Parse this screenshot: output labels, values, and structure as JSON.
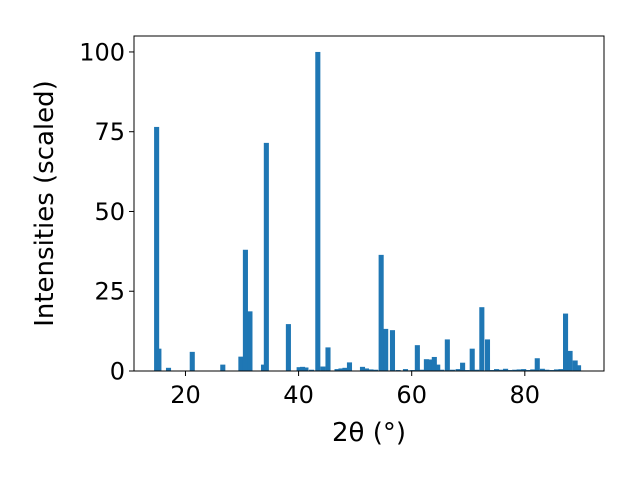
{
  "chart_data": {
    "type": "bar",
    "xlabel": "2θ (°)",
    "ylabel": "Intensities (scaled)",
    "xlim": [
      10.9,
      94.0
    ],
    "ylim": [
      0,
      105
    ],
    "xticks": [
      20,
      40,
      60,
      80
    ],
    "yticks": [
      0,
      25,
      50,
      75,
      100
    ],
    "grid": false,
    "bar_color": "#1f77b4",
    "bar_width": 0.9,
    "x": [
      14.9,
      15.3,
      17.0,
      21.2,
      26.6,
      29.8,
      30.6,
      31.4,
      33.8,
      34.3,
      38.2,
      40.1,
      40.7,
      41.3,
      42.3,
      43.4,
      44.3,
      45.2,
      46.8,
      47.5,
      48.2,
      49.0,
      51.3,
      52.0,
      52.8,
      53.6,
      54.6,
      55.4,
      56.6,
      57.6,
      58.9,
      59.6,
      60.2,
      61.0,
      61.8,
      62.6,
      63.2,
      64.0,
      64.6,
      65.3,
      66.3,
      67.2,
      68.2,
      69.0,
      69.8,
      70.7,
      71.5,
      72.4,
      73.4,
      74.2,
      75.0,
      75.8,
      76.6,
      77.3,
      78.2,
      79.0,
      79.8,
      80.6,
      81.4,
      82.2,
      83.1,
      83.9,
      84.8,
      85.6,
      86.4,
      87.2,
      88.0,
      88.9,
      89.5
    ],
    "values": [
      76.5,
      7.0,
      1.0,
      6.0,
      2.0,
      4.5,
      38.0,
      18.7,
      2.0,
      71.5,
      14.7,
      1.2,
      1.3,
      1.1,
      0.4,
      100.0,
      1.4,
      7.4,
      0.6,
      0.8,
      1.0,
      2.7,
      1.3,
      0.8,
      0.5,
      0.4,
      36.4,
      13.2,
      12.8,
      0.3,
      0.6,
      0.2,
      0.3,
      8.1,
      0.4,
      3.7,
      3.6,
      4.4,
      2.0,
      0.4,
      9.9,
      0.4,
      0.6,
      2.6,
      0.3,
      7.0,
      0.4,
      20.0,
      9.9,
      0.3,
      0.6,
      0.4,
      0.7,
      0.3,
      0.4,
      0.5,
      0.6,
      0.3,
      0.5,
      4.0,
      0.7,
      0.4,
      0.3,
      0.5,
      0.6,
      18.0,
      6.3,
      3.3,
      1.8
    ]
  }
}
